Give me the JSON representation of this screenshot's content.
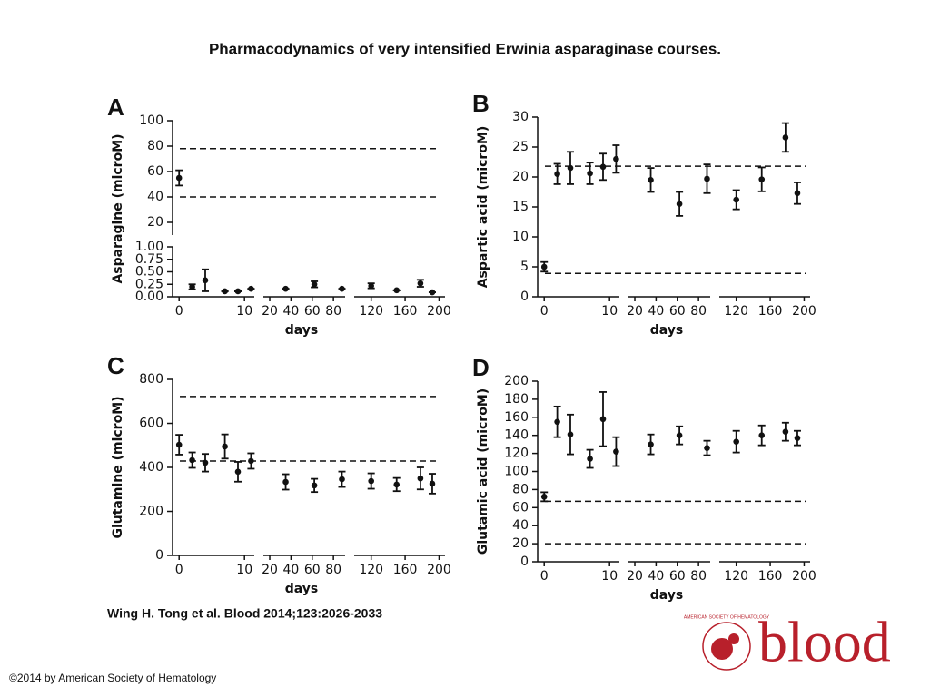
{
  "title": "Pharmacodynamics of very intensified Erwinia asparaginase courses.",
  "citation": "Wing H. Tong et al. Blood 2014;123:2026-2033",
  "copyright": "©2014 by American Society of Hematology",
  "logo": {
    "name": "blood",
    "org": "AMERICAN SOCIETY OF HEMATOLOGY"
  },
  "chart_data": [
    {
      "type": "scatter",
      "title": "A",
      "ylabel": "Asparagine (microM)",
      "xlabel": "days",
      "color": "#111111",
      "x": [
        0,
        2,
        4,
        7,
        9,
        11,
        35,
        62,
        88,
        120,
        150,
        178,
        192
      ],
      "values": [
        55,
        0.2,
        0.33,
        0.11,
        0.11,
        0.16,
        0.16,
        0.25,
        0.16,
        0.22,
        0.13,
        0.27,
        0.09
      ],
      "errors": [
        6,
        0.05,
        0.22,
        0,
        0,
        0,
        0,
        0.06,
        0,
        0.05,
        0,
        0.07,
        0
      ],
      "reference_lines": [
        78,
        40
      ],
      "xsegments": [
        {
          "lim": [
            -1,
            11.5
          ],
          "ticks": [
            0,
            10
          ]
        },
        {
          "lim": [
            14,
            91
          ],
          "ticks": [
            20,
            40,
            60,
            80
          ]
        },
        {
          "lim": [
            100,
            207
          ],
          "ticks": [
            120,
            160,
            200
          ]
        }
      ],
      "ysegments": [
        {
          "lim": [
            0,
            1
          ],
          "ticks": [
            {
              "value": 0,
              "label": "0.00"
            },
            {
              "value": 0.25,
              "label": "0.25"
            },
            {
              "value": 0.5,
              "label": "0.50"
            },
            {
              "value": 0.75,
              "label": "0.75"
            },
            {
              "value": 1,
              "label": "1.00"
            }
          ]
        },
        {
          "lim": [
            10,
            100
          ],
          "ticks": [
            20,
            40,
            60,
            80,
            100
          ]
        }
      ]
    },
    {
      "type": "scatter",
      "title": "B",
      "ylabel": "Aspartic acid (microM)",
      "xlabel": "days",
      "color": "#111111",
      "x": [
        0,
        2,
        4,
        7,
        9,
        11,
        35,
        62,
        88,
        120,
        150,
        178,
        192
      ],
      "values": [
        5,
        20.5,
        21.5,
        20.6,
        21.7,
        23,
        19.5,
        15.5,
        19.7,
        16.2,
        19.6,
        26.6,
        17.3
      ],
      "errors": [
        0.8,
        1.7,
        2.7,
        1.8,
        2.2,
        2.3,
        2,
        2,
        2.4,
        1.6,
        2,
        2.4,
        1.8
      ],
      "reference_lines": [
        21.8,
        3.9
      ],
      "xsegments": [
        {
          "lim": [
            -1,
            11.5
          ],
          "ticks": [
            0,
            10
          ]
        },
        {
          "lim": [
            14,
            91
          ],
          "ticks": [
            20,
            40,
            60,
            80
          ]
        },
        {
          "lim": [
            100,
            207
          ],
          "ticks": [
            120,
            160,
            200
          ]
        }
      ],
      "ysegments": [
        {
          "lim": [
            0,
            30
          ],
          "ticks": [
            0,
            5,
            10,
            15,
            20,
            25,
            30
          ]
        }
      ]
    },
    {
      "type": "scatter",
      "title": "C",
      "ylabel": "Glutamine (microM)",
      "xlabel": "days",
      "color": "#111111",
      "x": [
        0,
        2,
        4,
        7,
        9,
        11,
        35,
        62,
        88,
        120,
        150,
        178,
        192
      ],
      "values": [
        503,
        433,
        421,
        495,
        380,
        429,
        334,
        318,
        346,
        338,
        322,
        350,
        326
      ],
      "errors": [
        45,
        35,
        40,
        55,
        45,
        35,
        35,
        30,
        35,
        35,
        30,
        50,
        45
      ],
      "reference_lines": [
        722,
        429
      ],
      "xsegments": [
        {
          "lim": [
            -1,
            11.5
          ],
          "ticks": [
            0,
            10
          ]
        },
        {
          "lim": [
            14,
            91
          ],
          "ticks": [
            20,
            40,
            60,
            80
          ]
        },
        {
          "lim": [
            100,
            207
          ],
          "ticks": [
            120,
            160,
            200
          ]
        }
      ],
      "ysegments": [
        {
          "lim": [
            0,
            800
          ],
          "ticks": [
            0,
            200,
            400,
            600,
            800
          ]
        }
      ]
    },
    {
      "type": "scatter",
      "title": "D",
      "ylabel": "Glutamic acid (microM)",
      "xlabel": "days",
      "color": "#111111",
      "x": [
        0,
        2,
        4,
        7,
        9,
        11,
        35,
        62,
        88,
        120,
        150,
        178,
        192
      ],
      "values": [
        72,
        155,
        141,
        114,
        158,
        122,
        130,
        140,
        126,
        133,
        140,
        144,
        137
      ],
      "errors": [
        5,
        17,
        22,
        10,
        30,
        16,
        11,
        10,
        8,
        12,
        11,
        10,
        8
      ],
      "reference_lines": [
        67,
        20
      ],
      "xsegments": [
        {
          "lim": [
            -1,
            11.5
          ],
          "ticks": [
            0,
            10
          ]
        },
        {
          "lim": [
            14,
            91
          ],
          "ticks": [
            20,
            40,
            60,
            80
          ]
        },
        {
          "lim": [
            100,
            207
          ],
          "ticks": [
            120,
            160,
            200
          ]
        }
      ],
      "ysegments": [
        {
          "lim": [
            0,
            200
          ],
          "ticks": [
            0,
            20,
            40,
            60,
            80,
            100,
            120,
            140,
            160,
            180,
            200
          ]
        }
      ]
    }
  ]
}
